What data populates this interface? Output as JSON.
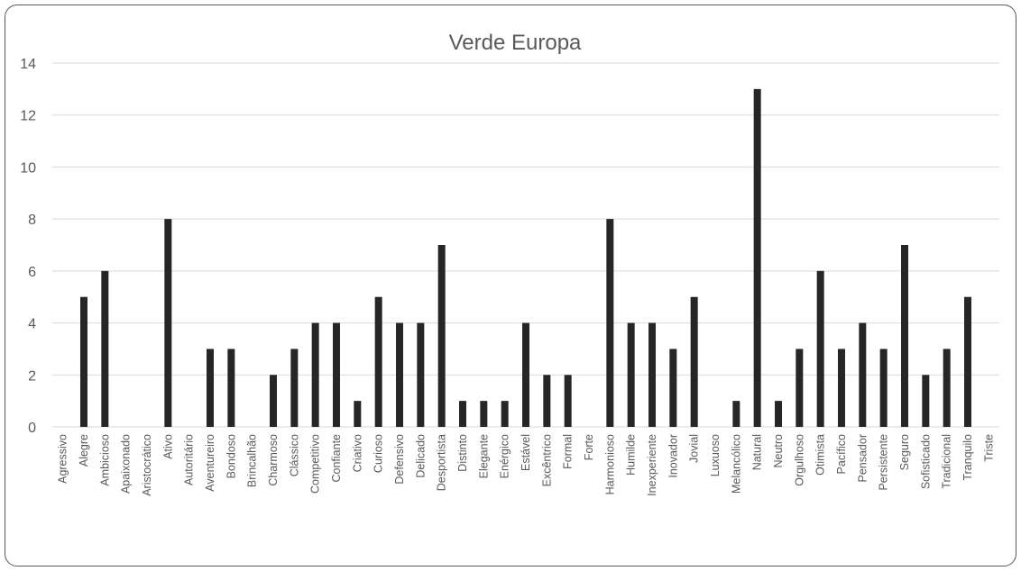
{
  "chart_data": {
    "type": "bar",
    "title": "Verde Europa",
    "xlabel": "",
    "ylabel": "",
    "ylim": [
      0,
      14
    ],
    "yticks": [
      0,
      2,
      4,
      6,
      8,
      10,
      12,
      14
    ],
    "grid": true,
    "legend": "none",
    "bar_color": "#262626",
    "categories": [
      "Agressivo",
      "Alegre",
      "Ambicioso",
      "Apaixonado",
      "Aristocrático",
      "Ativo",
      "Autoritário",
      "Aventureiro",
      "Bondoso",
      "Brincalhão",
      "Charmoso",
      "Clássico",
      "Competitivo",
      "Confiante",
      "Criativo",
      "Curioso",
      "Defensivo",
      "Delicado",
      "Desportista",
      "Distinto",
      "Elegante",
      "Enérgico",
      "Estável",
      "Excêntrico",
      "Formal",
      "Forte",
      "Harmonioso",
      "Humilde",
      "Inexperiente",
      "Inovador",
      "Jovial",
      "Luxuoso",
      "Melancólico",
      "Natural",
      "Neutro",
      "Orgulhoso",
      "Otimista",
      "Pacífico",
      "Pensador",
      "Persistente",
      "Seguro",
      "Sofisticado",
      "Tradicional",
      "Tranquilo",
      "Triste"
    ],
    "values": [
      0,
      5,
      6,
      0,
      0,
      8,
      0,
      3,
      3,
      0,
      2,
      3,
      4,
      4,
      1,
      5,
      4,
      4,
      7,
      1,
      1,
      1,
      4,
      2,
      2,
      0,
      8,
      4,
      4,
      3,
      5,
      0,
      1,
      13,
      1,
      3,
      6,
      3,
      4,
      3,
      7,
      2,
      3,
      5,
      0
    ]
  }
}
